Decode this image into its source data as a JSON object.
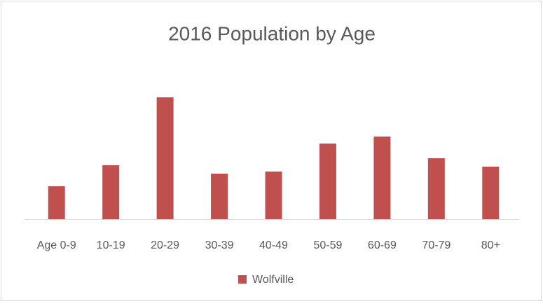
{
  "chart_data": {
    "type": "bar",
    "title": "2016 Population by Age",
    "categories": [
      "Age 0-9",
      "10-19",
      "20-29",
      "30-39",
      "40-49",
      "50-59",
      "60-69",
      "70-79",
      "80+"
    ],
    "series": [
      {
        "name": "Wolfville",
        "color": "#c0504d",
        "values": [
          235,
          385,
          870,
          325,
          340,
          540,
          590,
          435,
          375
        ]
      }
    ],
    "ylim": [
      0,
      1000
    ],
    "legend": "bottom"
  }
}
